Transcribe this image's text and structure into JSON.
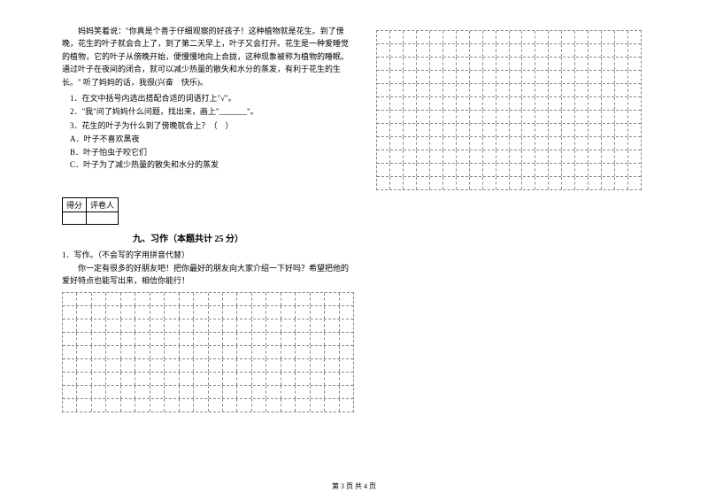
{
  "passage": {
    "text": "妈妈笑着说：\"你真是个善于仔细观察的好孩子！这种植物就是花生。到了傍晚，花生的叶子就会合上了，到了第二天早上，叶子又会打开。花生是一种爱睡觉的植物，它的叶子从傍晚开始，便慢慢地向上合拢，这种现象被称为植物的睡眠。通过叶子在夜间的闭合，就可以减少热量的散失和水分的蒸发，有利于花生的生长。\" 听了妈妈的话，我很(兴奋　快乐)。"
  },
  "questions": [
    "1．在文中括号内选出搭配合适的词语打上\"√\"。",
    "2．\"我\"问了妈妈什么问题，找出来，画上\"_______\"。",
    "3．花生的叶子为什么到了傍晚就合上？（　）"
  ],
  "options": [
    "A．叶子不喜欢黑夜",
    "B．叶子怕虫子咬它们",
    "C．叶子为了减少热量的散失和水分的蒸发"
  ],
  "scoreBox": {
    "labels": [
      "得分",
      "评卷人"
    ]
  },
  "section": {
    "title": "九、习作（本题共计 25 分）"
  },
  "writing": {
    "intro": "1．写作。（不会写的字用拼音代替）",
    "desc": "你一定有很多的好朋友吧！把你最好的朋友向大家介绍一下好吗？希望把他的爱好特点也能写出来，相信你能行！"
  },
  "gridLeft": {
    "rows": 9,
    "cols": 20
  },
  "gridRight": {
    "rows": 12,
    "cols": 20
  },
  "footer": {
    "text": "第 3 页 共 4 页"
  },
  "styling": {
    "background": "#ffffff",
    "text_color": "#000000",
    "font_size_body": 9,
    "font_size_title": 10,
    "grid_border_color": "#888888",
    "grid_cell_height": 14
  }
}
